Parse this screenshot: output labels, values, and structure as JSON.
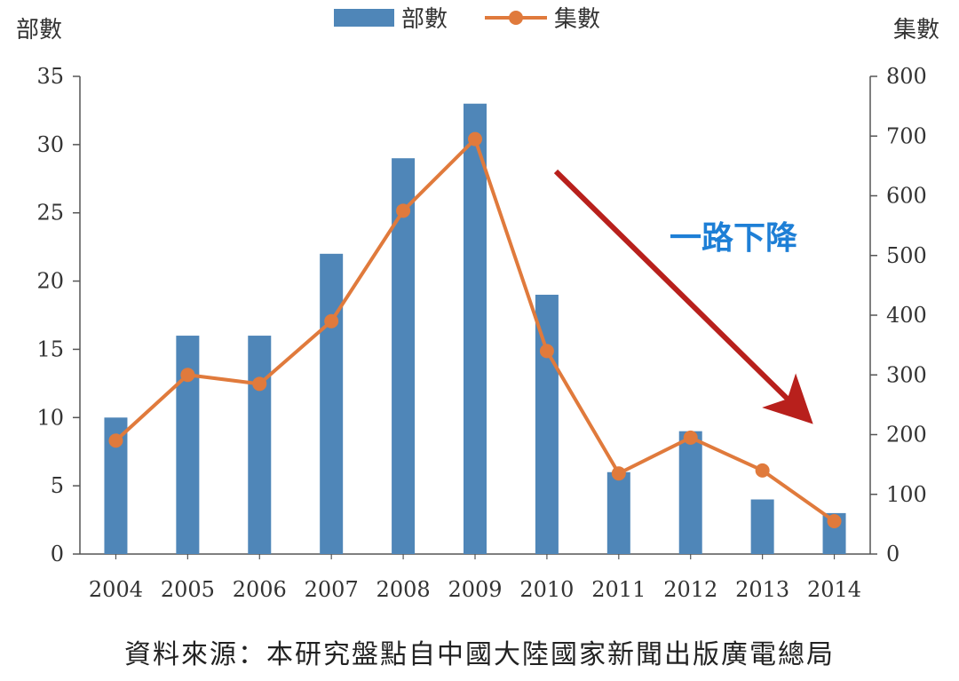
{
  "chart_data": {
    "type": "bar+line",
    "categories": [
      "2004",
      "2005",
      "2006",
      "2007",
      "2008",
      "2009",
      "2010",
      "2011",
      "2012",
      "2013",
      "2014"
    ],
    "series": [
      {
        "name": "部數",
        "type": "bar",
        "axis": "left",
        "values": [
          10,
          16,
          16,
          22,
          29,
          33,
          19,
          6,
          9,
          4,
          3
        ]
      },
      {
        "name": "集數",
        "type": "line",
        "axis": "right",
        "values": [
          190,
          300,
          285,
          390,
          575,
          695,
          340,
          135,
          195,
          140,
          55
        ]
      }
    ],
    "ylabel_left": "部數",
    "ylabel_right": "集數",
    "ylim_left": [
      0,
      35
    ],
    "ylim_right": [
      0,
      800
    ],
    "yticks_left": [
      0,
      5,
      10,
      15,
      20,
      25,
      30,
      35
    ],
    "yticks_right": [
      0,
      100,
      200,
      300,
      400,
      500,
      600,
      700,
      800
    ],
    "legend_position": "top-center",
    "grid": false,
    "annotation": {
      "text": "一路下降"
    },
    "colors": {
      "bar": "#4f86b8",
      "line": "#e07a3c",
      "arrow": "#b8201c",
      "annotation": "#1e7fd6",
      "axis": "#555555"
    }
  },
  "source_text": "資料來源：本研究盤點自中國大陸國家新聞出版廣電總局"
}
